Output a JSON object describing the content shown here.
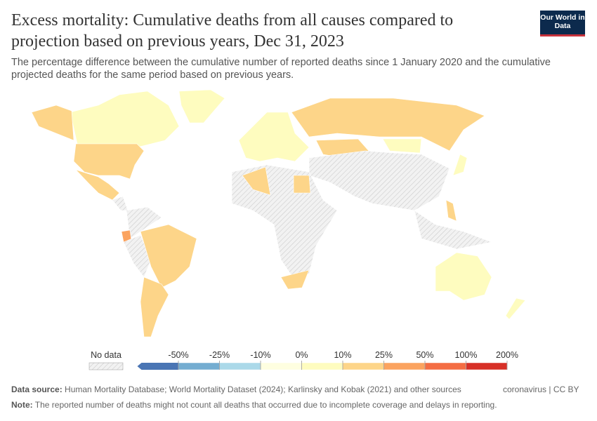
{
  "header": {
    "title": "Excess mortality: Cumulative deaths from all causes compared to projection based on previous years, Dec 31, 2023",
    "subtitle": "The percentage difference between the cumulative number of reported deaths since 1 January 2020 and the cumulative projected deaths for the same period based on previous years.",
    "logo": "Our World in Data"
  },
  "legend": {
    "no_data": "No data",
    "bins": [
      {
        "value": -50,
        "label": "-50%"
      },
      {
        "value": -25,
        "label": "-25%"
      },
      {
        "value": -10,
        "label": "-10%"
      },
      {
        "value": 0,
        "label": "0%"
      },
      {
        "value": 10,
        "label": "10%"
      },
      {
        "value": 25,
        "label": "25%"
      },
      {
        "value": 50,
        "label": "50%"
      },
      {
        "value": 100,
        "label": "100%"
      },
      {
        "value": 200,
        "label": "200%"
      }
    ],
    "colors": [
      "#4a75b4",
      "#74add1",
      "#abd9e9",
      "#fefee0",
      "#fefcbf",
      "#fdd589",
      "#fba35f",
      "#f46d43",
      "#d73027"
    ]
  },
  "footer": {
    "source_label": "Data source:",
    "source": "Human Mortality Database; World Mortality Dataset (2024); Karlinsky and Kobak (2021) and other sources",
    "license": "coronavirus | CC BY",
    "note_label": "Note:",
    "note": "The reported number of deaths might not count all deaths that occurred due to incomplete coverage and delays in reporting."
  }
}
